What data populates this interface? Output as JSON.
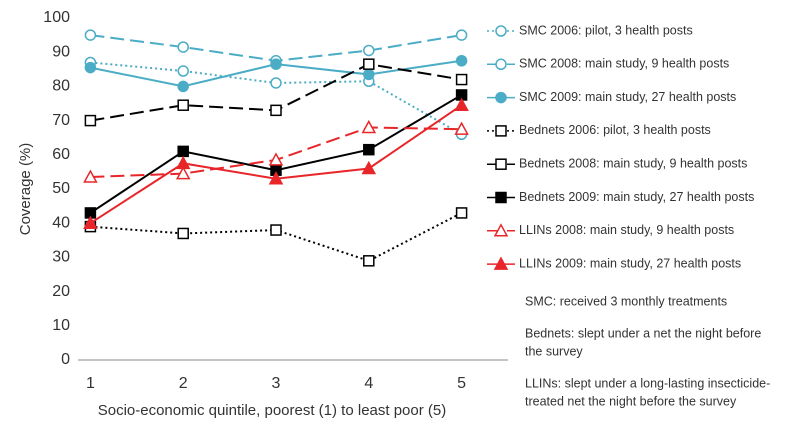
{
  "chart_data": {
    "type": "line",
    "categories": [
      "1",
      "2",
      "3",
      "4",
      "5"
    ],
    "xlabel": "Socio-economic quintile, poorest (1) to least poor (5)",
    "ylabel": "Coverage (%)",
    "ylim": [
      0,
      100
    ],
    "yticks": [
      0,
      10,
      20,
      30,
      40,
      50,
      60,
      70,
      80,
      90,
      100
    ],
    "grid": false,
    "legend": "right",
    "series": [
      {
        "name": "SMC 2006: pilot, 3 health posts",
        "color": "#4bacc6",
        "dash": "dotted",
        "marker": "circle",
        "filled": false,
        "values": [
          87,
          84.5,
          81,
          81.5,
          66
        ]
      },
      {
        "name": "SMC 2008: main study, 9 health posts",
        "color": "#4bacc6",
        "dash": "dashed",
        "marker": "circle",
        "filled": false,
        "values": [
          95,
          91.5,
          87.5,
          90.5,
          95
        ]
      },
      {
        "name": "SMC 2009: main study, 27 health posts",
        "color": "#4bacc6",
        "dash": "solid",
        "marker": "circle",
        "filled": true,
        "values": [
          85.5,
          80,
          86.5,
          83.5,
          87.5
        ]
      },
      {
        "name": "Bednets 2006: pilot, 3 health posts",
        "color": "#000000",
        "dash": "dotted",
        "marker": "square",
        "filled": false,
        "values": [
          39,
          37,
          38,
          29,
          43
        ]
      },
      {
        "name": "Bednets 2008: main study, 9 health posts",
        "color": "#000000",
        "dash": "dashed",
        "marker": "square",
        "filled": false,
        "values": [
          70,
          74.5,
          73,
          86.5,
          82
        ]
      },
      {
        "name": "Bednets 2009: main study, 27 health posts",
        "color": "#000000",
        "dash": "solid",
        "marker": "square",
        "filled": true,
        "values": [
          43,
          61,
          55.5,
          61.5,
          77.5
        ]
      },
      {
        "name": "LLINs 2008: main study, 9 health posts",
        "color": "#e8262a",
        "dash": "dashed",
        "marker": "triangle",
        "filled": false,
        "values": [
          53.5,
          54.5,
          58.5,
          68,
          67.5
        ]
      },
      {
        "name": "LLINs 2009: main study, 27 health posts",
        "color": "#e8262a",
        "dash": "solid",
        "marker": "triangle",
        "filled": true,
        "values": [
          40,
          57.5,
          53,
          56,
          74.5
        ]
      }
    ],
    "notes": [
      [
        "SMC: received 3 monthly treatments"
      ],
      [
        "Bednets: slept under a net the night before",
        "the survey"
      ],
      [
        "LLINs: slept under a long-lasting insecticide-",
        "treated net  the night before the survey"
      ]
    ]
  }
}
